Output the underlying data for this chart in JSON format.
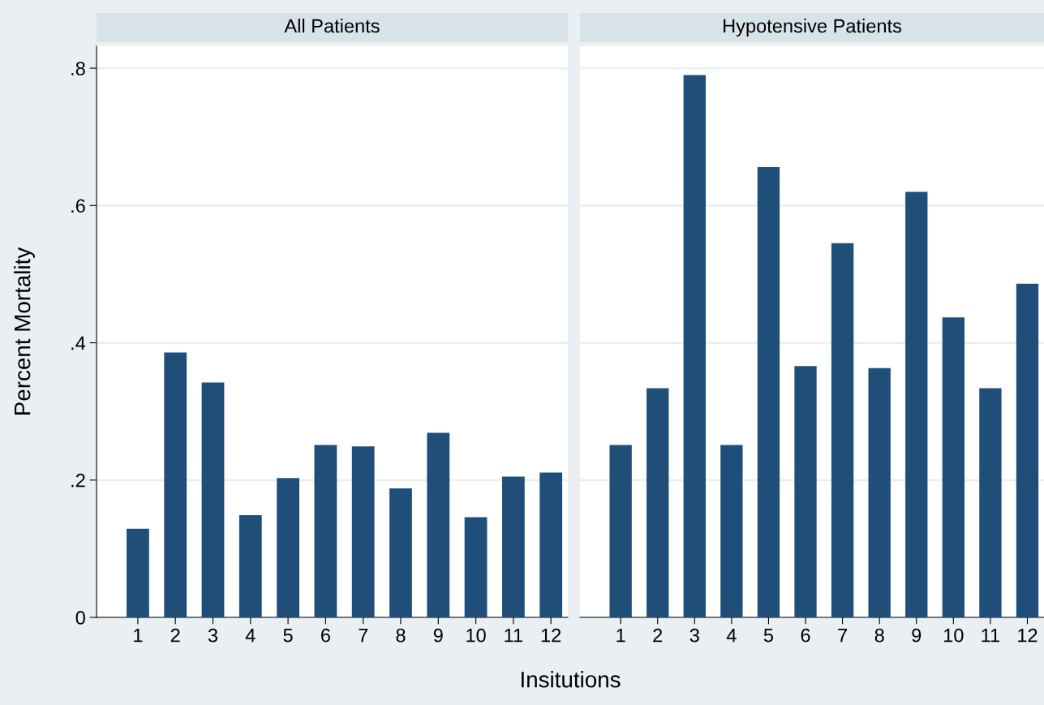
{
  "chart_data": [
    {
      "type": "bar",
      "title": "All Patients",
      "ylabel": "Percent Mortality",
      "xlabel": "Insitutions",
      "categories": [
        "1",
        "2",
        "3",
        "4",
        "5",
        "6",
        "7",
        "8",
        "9",
        "10",
        "11",
        "12"
      ],
      "values": [
        0.129,
        0.386,
        0.342,
        0.149,
        0.203,
        0.251,
        0.249,
        0.188,
        0.269,
        0.146,
        0.205,
        0.211
      ],
      "color": "#1f4e79",
      "ylim": [
        0,
        0.832
      ],
      "yticks": [
        0,
        {
          "value": 0.2,
          "label": ".2"
        },
        {
          "value": 0.4,
          "label": ".4"
        },
        {
          "value": 0.6,
          "label": ".6"
        },
        {
          "value": 0.8,
          "label": ".8"
        }
      ],
      "grid": "y"
    },
    {
      "type": "bar",
      "title": "Hypotensive Patients",
      "categories": [
        "1",
        "2",
        "3",
        "4",
        "5",
        "6",
        "7",
        "8",
        "9",
        "10",
        "11",
        "12"
      ],
      "values": [
        0.251,
        0.334,
        0.79,
        0.251,
        0.656,
        0.366,
        0.545,
        0.363,
        0.62,
        0.437,
        0.334,
        0.486
      ],
      "color": "#1f4e79",
      "ylim": [
        0,
        0.832
      ],
      "yticks": [
        {
          "value": 0,
          "label": null
        },
        {
          "value": 0.2,
          "label": null
        },
        {
          "value": 0.4,
          "label": null
        },
        {
          "value": 0.6,
          "label": null
        },
        {
          "value": 0.8,
          "label": null
        }
      ],
      "grid": "y",
      "tick_labels": "x"
    }
  ]
}
